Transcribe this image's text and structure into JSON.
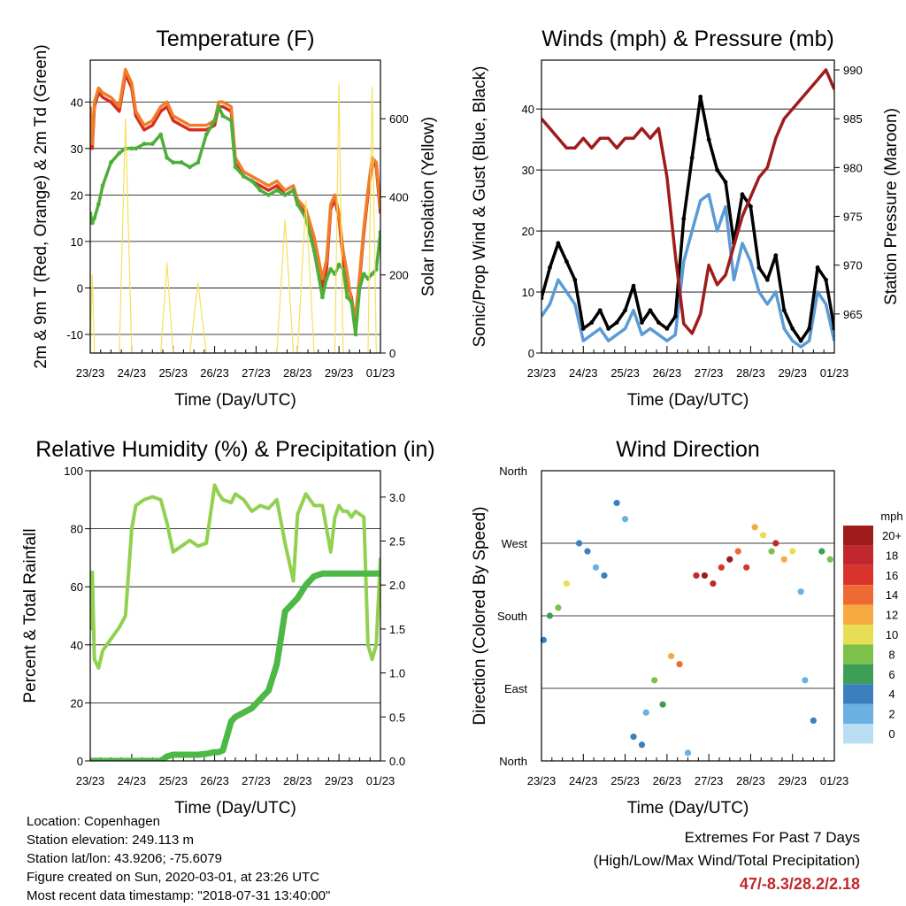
{
  "days": [
    "23/23",
    "24/23",
    "25/23",
    "26/23",
    "27/23",
    "28/23",
    "29/23",
    "01/23"
  ],
  "xlabel": "Time (Day/UTC)",
  "chart_data": [
    {
      "type": "line",
      "title": "Temperature (F)",
      "ylabel_left": "2m & 9m T (Red, Orange) & 2m Td (Green)",
      "ylabel_right": "Solar Insolation (Yellow)",
      "ylim": [
        -14,
        49
      ],
      "y_ticks": [
        -10,
        0,
        10,
        20,
        30,
        40
      ],
      "y2lim": [
        0,
        750
      ],
      "y2_ticks": [
        0,
        200,
        400,
        600
      ],
      "x": [
        0,
        0.05,
        0.1,
        0.2,
        0.3,
        0.5,
        0.7,
        0.85,
        1.0,
        1.1,
        1.3,
        1.5,
        1.7,
        1.85,
        2.0,
        2.2,
        2.4,
        2.6,
        2.8,
        3.0,
        3.1,
        3.2,
        3.4,
        3.5,
        3.7,
        3.9,
        4.1,
        4.3,
        4.5,
        4.7,
        4.9,
        5.0,
        5.2,
        5.4,
        5.6,
        5.7,
        5.8,
        5.9,
        6.0,
        6.1,
        6.2,
        6.3,
        6.4,
        6.5,
        6.6,
        6.7,
        6.8,
        6.9,
        7.0
      ],
      "series": [
        {
          "name": "2m T",
          "color": "#d62d20",
          "values": [
            38,
            30,
            39,
            42,
            41,
            40,
            38,
            46,
            43,
            37,
            34,
            35,
            38,
            39,
            36,
            35,
            34,
            34,
            34,
            35,
            39,
            39,
            38,
            27,
            24,
            23,
            22,
            21,
            22,
            20,
            21,
            18,
            16,
            10,
            0,
            4,
            17,
            19,
            15,
            6,
            1,
            -2,
            -8,
            2,
            12,
            20,
            27,
            26,
            16
          ]
        },
        {
          "name": "9m T",
          "color": "#f07d2a",
          "values": [
            39,
            31,
            40,
            43,
            42,
            41,
            39,
            47,
            44,
            38,
            35,
            36,
            39,
            40,
            37,
            36,
            35,
            35,
            35,
            36,
            40,
            40,
            39,
            28,
            25,
            24,
            23,
            22,
            23,
            21,
            22,
            19,
            17,
            11,
            2,
            6,
            18,
            20,
            16,
            8,
            3,
            -3,
            -6,
            3,
            13,
            21,
            28,
            27,
            17
          ]
        },
        {
          "name": "2m Td",
          "color": "#4caf3a",
          "values": [
            16,
            14,
            15,
            18,
            22,
            27,
            29,
            30,
            30,
            30,
            31,
            31,
            33,
            28,
            27,
            27,
            26,
            27,
            33,
            36,
            39,
            37,
            36,
            26,
            24,
            23,
            21,
            20,
            21,
            20,
            21,
            18,
            15,
            8,
            -2,
            2,
            4,
            3,
            5,
            4,
            -2,
            -3,
            -10,
            0,
            3,
            2,
            3,
            4,
            12
          ]
        },
        {
          "name": "Solar Insolation",
          "color": "#f5e05a",
          "axis": "right",
          "values": [
            0,
            200,
            0,
            0,
            0,
            0,
            0,
            600,
            0,
            0,
            0,
            0,
            0,
            230,
            0,
            0,
            0,
            180,
            0,
            0,
            0,
            0,
            0,
            0,
            0,
            0,
            0,
            0,
            0,
            340,
            0,
            0,
            390,
            0,
            0,
            0,
            0,
            0,
            690,
            0,
            0,
            0,
            0,
            0,
            0,
            0,
            680,
            0,
            0
          ]
        }
      ]
    },
    {
      "type": "line",
      "title": "Winds (mph) & Pressure (mb)",
      "ylabel_left": "Sonic/Prop Wind & Gust (Blue, Black)",
      "ylabel_right": "Station Pressure (Maroon)",
      "ylim": [
        0,
        48
      ],
      "y_ticks": [
        0,
        10,
        20,
        30,
        40
      ],
      "y2lim": [
        961,
        991
      ],
      "y2_ticks": [
        965,
        970,
        975,
        980,
        985,
        990
      ],
      "x": [
        0,
        0.2,
        0.4,
        0.6,
        0.8,
        1.0,
        1.2,
        1.4,
        1.6,
        1.8,
        2.0,
        2.2,
        2.4,
        2.6,
        2.8,
        3.0,
        3.2,
        3.4,
        3.6,
        3.8,
        4.0,
        4.2,
        4.4,
        4.6,
        4.8,
        5.0,
        5.2,
        5.4,
        5.6,
        5.8,
        6.0,
        6.2,
        6.4,
        6.6,
        6.8,
        7.0
      ],
      "series": [
        {
          "name": "Wind",
          "color": "#5b9bd5",
          "values": [
            6,
            8,
            12,
            10,
            8,
            2,
            3,
            4,
            2,
            3,
            4,
            7,
            3,
            4,
            3,
            2,
            3,
            15,
            20,
            25,
            26,
            20,
            24,
            12,
            18,
            15,
            10,
            8,
            10,
            4,
            2,
            1,
            2,
            10,
            8,
            2
          ]
        },
        {
          "name": "Gust",
          "color": "#000000",
          "values": [
            9,
            14,
            18,
            15,
            12,
            4,
            5,
            7,
            4,
            5,
            7,
            11,
            5,
            7,
            5,
            4,
            6,
            22,
            32,
            42,
            35,
            30,
            28,
            18,
            26,
            24,
            14,
            12,
            16,
            7,
            4,
            2,
            4,
            14,
            12,
            4
          ]
        },
        {
          "name": "Pressure",
          "color": "#a01c1c",
          "axis": "right",
          "values": [
            985,
            984,
            983,
            982,
            982,
            983,
            982,
            983,
            983,
            982,
            983,
            983,
            984,
            983,
            984,
            979,
            971,
            964,
            963,
            965,
            970,
            968,
            969,
            972,
            975,
            977,
            979,
            980,
            983,
            985,
            986,
            987,
            988,
            989,
            990,
            988
          ]
        }
      ]
    },
    {
      "type": "line",
      "title": "Relative Humidity (%) & Precipitation (in)",
      "ylabel_left": "Percent & Total Rainfall",
      "ylim": [
        0,
        100
      ],
      "y_ticks": [
        0,
        20,
        40,
        60,
        80,
        100
      ],
      "y2lim": [
        0,
        3.3
      ],
      "y2_ticks": [
        0.0,
        0.5,
        1.0,
        1.5,
        2.0,
        2.5,
        3.0
      ],
      "x": [
        0,
        0.05,
        0.1,
        0.2,
        0.3,
        0.5,
        0.7,
        0.85,
        1.0,
        1.1,
        1.3,
        1.5,
        1.7,
        1.85,
        2.0,
        2.2,
        2.4,
        2.6,
        2.8,
        3.0,
        3.1,
        3.2,
        3.4,
        3.5,
        3.7,
        3.9,
        4.1,
        4.3,
        4.5,
        4.7,
        4.9,
        5.0,
        5.2,
        5.4,
        5.6,
        5.7,
        5.8,
        5.9,
        6.0,
        6.1,
        6.2,
        6.3,
        6.4,
        6.5,
        6.6,
        6.7,
        6.8,
        6.9,
        7.0
      ],
      "series": [
        {
          "name": "RH",
          "color": "#92d050",
          "values": [
            45,
            65,
            35,
            32,
            38,
            42,
            46,
            50,
            80,
            88,
            90,
            91,
            90,
            82,
            72,
            74,
            76,
            74,
            75,
            95,
            92,
            90,
            89,
            92,
            90,
            86,
            88,
            87,
            90,
            75,
            62,
            85,
            92,
            88,
            88,
            80,
            72,
            84,
            88,
            86,
            86,
            84,
            86,
            85,
            84,
            40,
            35,
            40,
            70
          ]
        },
        {
          "name": "Total Rainfall",
          "color": "#4cb845",
          "axis": "right",
          "values": [
            0,
            0,
            0,
            0,
            0,
            0,
            0,
            0,
            0,
            0,
            0,
            0,
            0,
            0.05,
            0.07,
            0.07,
            0.07,
            0.07,
            0.08,
            0.1,
            0.1,
            0.12,
            0.45,
            0.5,
            0.55,
            0.6,
            0.7,
            0.8,
            1.1,
            1.7,
            1.8,
            1.85,
            2.0,
            2.1,
            2.13,
            2.13,
            2.13,
            2.13,
            2.13,
            2.13,
            2.13,
            2.13,
            2.13,
            2.13,
            2.13,
            2.13,
            2.13,
            2.13,
            2.13
          ]
        }
      ]
    },
    {
      "type": "scatter",
      "title": "Wind Direction",
      "ylabel_left": "Direction (Colored By Speed)",
      "y_ticks_labels": [
        "North",
        "East",
        "South",
        "West",
        "North"
      ],
      "ylim": [
        0,
        360
      ],
      "legend_title": "mph",
      "legend_labels": [
        "20+",
        "18",
        "16",
        "14",
        "12",
        "10",
        "8",
        "6",
        "4",
        "2",
        "0"
      ],
      "legend_colors": [
        "#9e1b1b",
        "#c1272d",
        "#d9342b",
        "#ef6a32",
        "#f7a941",
        "#e8de55",
        "#7cc24a",
        "#3d9e58",
        "#3b7fbf",
        "#6ab0e0",
        "#b9def4"
      ],
      "x": [
        0.05,
        0.2,
        0.4,
        0.6,
        0.9,
        1.1,
        1.3,
        1.5,
        1.8,
        2.0,
        2.2,
        2.4,
        2.5,
        2.7,
        2.9,
        3.1,
        3.3,
        3.5,
        3.7,
        3.9,
        4.1,
        4.3,
        4.5,
        4.7,
        4.9,
        5.1,
        5.3,
        5.5,
        5.6,
        5.8,
        6.0,
        6.2,
        6.3,
        6.5,
        6.7,
        6.9
      ],
      "values": [
        150,
        180,
        190,
        220,
        270,
        260,
        240,
        230,
        320,
        300,
        30,
        20,
        60,
        100,
        70,
        130,
        120,
        10,
        230,
        230,
        220,
        240,
        250,
        260,
        240,
        290,
        280,
        260,
        270,
        250,
        260,
        210,
        100,
        50,
        260,
        250
      ],
      "speeds": [
        4,
        6,
        8,
        10,
        4,
        3,
        2,
        4,
        4,
        2,
        3,
        4,
        2,
        8,
        6,
        12,
        14,
        2,
        18,
        20,
        18,
        16,
        20,
        14,
        16,
        12,
        10,
        8,
        18,
        12,
        10,
        2,
        2,
        3,
        6,
        8
      ]
    }
  ],
  "info": {
    "location": "Location: Copenhagen",
    "elevation": "Station elevation: 249.113 m",
    "latlon": "Station lat/lon: 43.9206; -75.6079",
    "created": "Figure created on Sun, 2020-03-01, at 23:26 UTC",
    "recent": "Most recent data timestamp: \"2018-07-31 13:40:00\""
  },
  "extremes": {
    "title": "Extremes For Past 7 Days",
    "subtitle": "(High/Low/Max Wind/Total Precipitation)",
    "value": "47/-8.3/28.2/2.18"
  }
}
